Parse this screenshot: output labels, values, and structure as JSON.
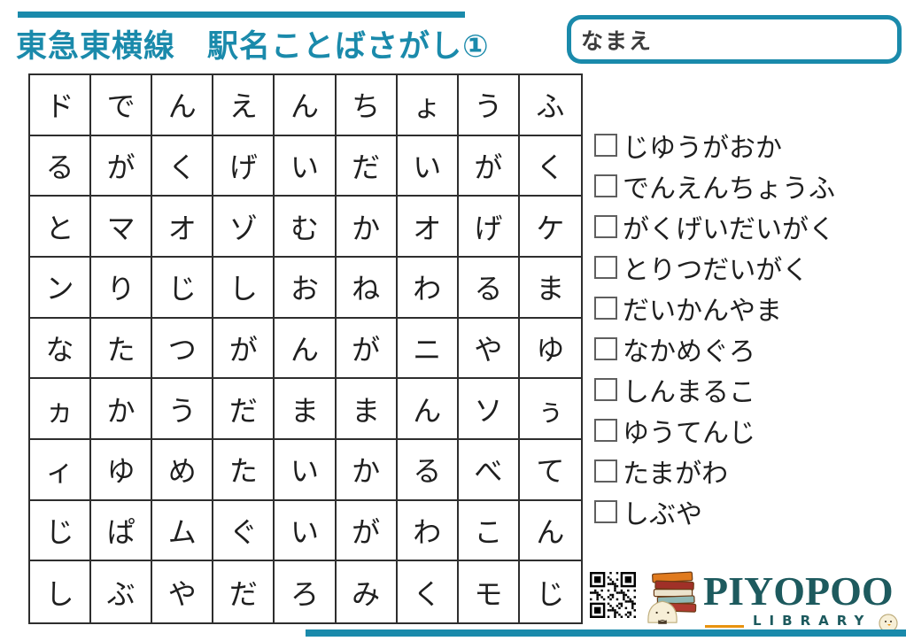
{
  "theme": {
    "accent_color": "#1a8aab",
    "logo_color": "#1d5a5e",
    "orange_color": "#e8930f"
  },
  "header": {
    "title": "東急東横線　駅名ことばさがし①",
    "name_label": "なまえ"
  },
  "grid": {
    "rows": [
      [
        "ド",
        "で",
        "ん",
        "え",
        "ん",
        "ち",
        "ょ",
        "う",
        "ふ"
      ],
      [
        "る",
        "が",
        "く",
        "げ",
        "い",
        "だ",
        "い",
        "が",
        "く"
      ],
      [
        "と",
        "マ",
        "オ",
        "ゾ",
        "む",
        "か",
        "オ",
        "げ",
        "ケ"
      ],
      [
        "ン",
        "り",
        "じ",
        "し",
        "お",
        "ね",
        "わ",
        "る",
        "ま"
      ],
      [
        "な",
        "た",
        "つ",
        "が",
        "ん",
        "が",
        "ニ",
        "や",
        "ゆ"
      ],
      [
        "ヵ",
        "か",
        "う",
        "だ",
        "ま",
        "ま",
        "ん",
        "ソ",
        "ぅ"
      ],
      [
        "ィ",
        "ゆ",
        "め",
        "た",
        "い",
        "か",
        "る",
        "べ",
        "て"
      ],
      [
        "じ",
        "ぱ",
        "ム",
        "ぐ",
        "い",
        "が",
        "わ",
        "こ",
        "ん"
      ],
      [
        "し",
        "ぶ",
        "や",
        "だ",
        "ろ",
        "み",
        "く",
        "モ",
        "じ"
      ]
    ]
  },
  "word_list": {
    "items": [
      "じゆうがおか",
      "でんえんちょうふ",
      "がくげいだいがく",
      "とりつだいがく",
      "だいかんやま",
      "なかめぐろ",
      "しんまるこ",
      "ゆうてんじ",
      "たまがわ",
      "しぶや"
    ]
  },
  "footer": {
    "logo_title": "PIYOPOO",
    "logo_subtitle": "LIBRARY",
    "qr_icon": "qr-code",
    "book_stack_icon": "book-stack"
  }
}
